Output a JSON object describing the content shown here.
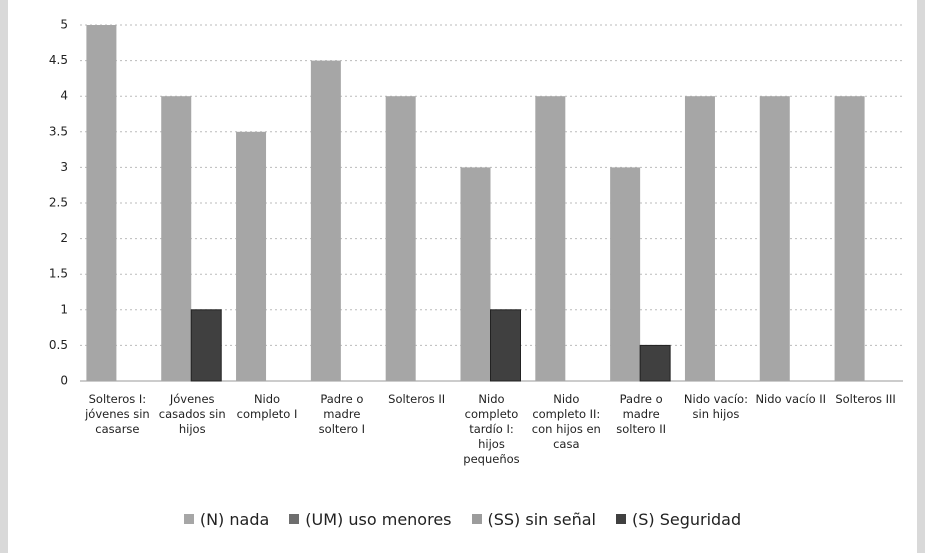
{
  "chart_data": {
    "type": "bar",
    "categories": [
      "Solteros I: jóvenes sin casarse",
      "Jóvenes casados sin hijos",
      "Nido completo I",
      "Padre o madre soltero I",
      "Solteros II",
      "Nido completo tardío I: hijos pequeños",
      "Nido completo II: con hijos en casa",
      "Padre o madre soltero II",
      "Nido vacío: sin hijos",
      "Nido vacío II",
      "Solteros III"
    ],
    "series": [
      {
        "name": "(N) nada",
        "color": "#a6a6a6",
        "values": [
          5,
          4,
          3.5,
          4.5,
          4,
          3,
          4,
          3,
          4,
          4,
          4
        ]
      },
      {
        "name": "(UM) uso menores",
        "color": "#6e6e6e",
        "values": [
          0,
          0,
          0,
          0,
          0,
          0,
          0,
          0,
          0,
          0,
          0
        ]
      },
      {
        "name": "(SS) sin señal",
        "color": "#9c9c9c",
        "values": [
          0,
          0,
          0,
          0,
          0,
          0,
          0,
          0,
          0,
          0,
          0
        ]
      },
      {
        "name": "(S) Seguridad",
        "color": "#404040",
        "values": [
          0,
          1,
          0,
          0,
          0,
          1,
          0,
          0.5,
          0,
          0,
          0
        ]
      }
    ],
    "ylim": [
      0,
      5
    ],
    "yticks": [
      0,
      0.5,
      1,
      1.5,
      2,
      2.5,
      3,
      3.5,
      4,
      4.5,
      5
    ],
    "grid": true,
    "legend": "bottom"
  }
}
